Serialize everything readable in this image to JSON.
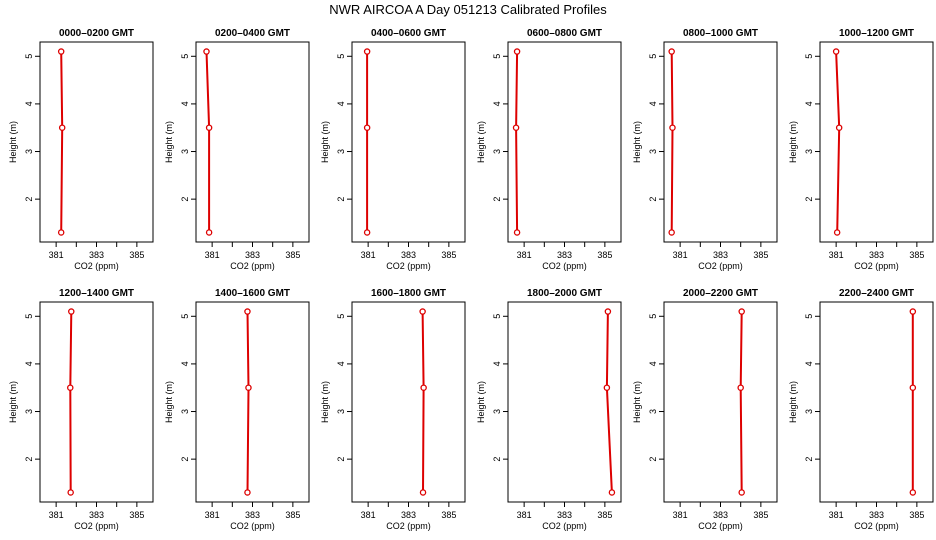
{
  "title": "NWR AIRCOA A  Day 051213  Calibrated Profiles",
  "colors": {
    "profile": "#dd0000",
    "axis": "#000000",
    "background": "#ffffff"
  },
  "chart_data": {
    "type": "line",
    "grid": false,
    "xlim": [
      380.2,
      385.8
    ],
    "ylim": [
      1.1,
      5.3
    ],
    "xticks": [
      381,
      382,
      383,
      384,
      385
    ],
    "xtick_labels": [
      "381",
      "",
      "383",
      "",
      "385"
    ],
    "yticks": [
      2,
      3,
      4,
      5
    ],
    "xlabel": "CO2 (ppm)",
    "ylabel": "Height (m)",
    "panels": [
      {
        "title": "0000–0200 GMT",
        "points": [
          {
            "x": 381.25,
            "y": 5.1
          },
          {
            "x": 381.3,
            "y": 3.5
          },
          {
            "x": 381.25,
            "y": 1.3
          }
        ]
      },
      {
        "title": "0200–0400 GMT",
        "points": [
          {
            "x": 380.72,
            "y": 5.1
          },
          {
            "x": 380.85,
            "y": 3.5
          },
          {
            "x": 380.85,
            "y": 1.3
          }
        ]
      },
      {
        "title": "0400–0600 GMT",
        "points": [
          {
            "x": 380.95,
            "y": 5.1
          },
          {
            "x": 380.95,
            "y": 3.5
          },
          {
            "x": 380.95,
            "y": 1.3
          }
        ]
      },
      {
        "title": "0600–0800 GMT",
        "points": [
          {
            "x": 380.65,
            "y": 5.1
          },
          {
            "x": 380.6,
            "y": 3.5
          },
          {
            "x": 380.65,
            "y": 1.3
          }
        ]
      },
      {
        "title": "0800–1000 GMT",
        "points": [
          {
            "x": 380.58,
            "y": 5.1
          },
          {
            "x": 380.62,
            "y": 3.5
          },
          {
            "x": 380.58,
            "y": 1.3
          }
        ]
      },
      {
        "title": "1000–1200 GMT",
        "points": [
          {
            "x": 381.0,
            "y": 5.1
          },
          {
            "x": 381.15,
            "y": 3.5
          },
          {
            "x": 381.05,
            "y": 1.3
          }
        ]
      },
      {
        "title": "1200–1400 GMT",
        "points": [
          {
            "x": 381.75,
            "y": 5.1
          },
          {
            "x": 381.7,
            "y": 3.5
          },
          {
            "x": 381.72,
            "y": 1.3
          }
        ]
      },
      {
        "title": "1400–1600 GMT",
        "points": [
          {
            "x": 382.75,
            "y": 5.1
          },
          {
            "x": 382.8,
            "y": 3.5
          },
          {
            "x": 382.75,
            "y": 1.3
          }
        ]
      },
      {
        "title": "1600–1800 GMT",
        "points": [
          {
            "x": 383.7,
            "y": 5.1
          },
          {
            "x": 383.75,
            "y": 3.5
          },
          {
            "x": 383.72,
            "y": 1.3
          }
        ]
      },
      {
        "title": "1800–2000 GMT",
        "points": [
          {
            "x": 385.15,
            "y": 5.1
          },
          {
            "x": 385.1,
            "y": 3.5
          },
          {
            "x": 385.35,
            "y": 1.3
          }
        ]
      },
      {
        "title": "2000–2200 GMT",
        "points": [
          {
            "x": 384.05,
            "y": 5.1
          },
          {
            "x": 384.0,
            "y": 3.5
          },
          {
            "x": 384.05,
            "y": 1.3
          }
        ]
      },
      {
        "title": "2200–2400 GMT",
        "points": [
          {
            "x": 384.8,
            "y": 5.1
          },
          {
            "x": 384.8,
            "y": 3.5
          },
          {
            "x": 384.8,
            "y": 1.3
          }
        ]
      }
    ]
  }
}
